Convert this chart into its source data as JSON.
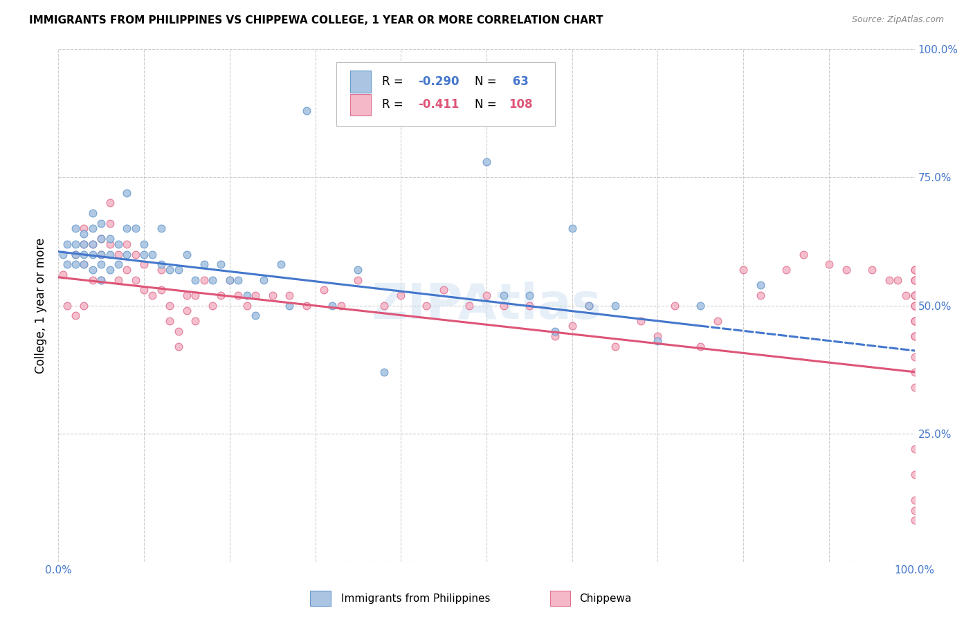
{
  "title": "IMMIGRANTS FROM PHILIPPINES VS CHIPPEWA COLLEGE, 1 YEAR OR MORE CORRELATION CHART",
  "source": "Source: ZipAtlas.com",
  "ylabel": "College, 1 year or more",
  "xlim": [
    0.0,
    1.0
  ],
  "ylim": [
    0.0,
    1.0
  ],
  "xtick_positions": [
    0.0,
    0.1,
    0.2,
    0.3,
    0.4,
    0.5,
    0.6,
    0.7,
    0.8,
    0.9,
    1.0
  ],
  "ytick_positions": [
    0.0,
    0.25,
    0.5,
    0.75,
    1.0
  ],
  "series1_color": "#aac4e2",
  "series1_edge": "#6699cc",
  "series2_color": "#f4b8c8",
  "series2_edge": "#e07090",
  "line1_color": "#4477cc",
  "line2_color": "#dd5577",
  "watermark": "ZIPAtlas",
  "legend_r1": "-0.290",
  "legend_n1": "63",
  "legend_r2": "-0.411",
  "legend_n2": "108",
  "series1_x": [
    0.005,
    0.01,
    0.01,
    0.02,
    0.02,
    0.02,
    0.02,
    0.03,
    0.03,
    0.03,
    0.03,
    0.04,
    0.04,
    0.04,
    0.04,
    0.04,
    0.05,
    0.05,
    0.05,
    0.05,
    0.05,
    0.06,
    0.06,
    0.06,
    0.07,
    0.07,
    0.08,
    0.08,
    0.08,
    0.09,
    0.1,
    0.1,
    0.11,
    0.12,
    0.12,
    0.13,
    0.14,
    0.15,
    0.16,
    0.17,
    0.18,
    0.19,
    0.2,
    0.21,
    0.22,
    0.23,
    0.24,
    0.26,
    0.27,
    0.29,
    0.32,
    0.35,
    0.38,
    0.5,
    0.52,
    0.55,
    0.58,
    0.6,
    0.62,
    0.65,
    0.7,
    0.75,
    0.82
  ],
  "series1_y": [
    0.6,
    0.62,
    0.58,
    0.65,
    0.62,
    0.6,
    0.58,
    0.64,
    0.62,
    0.6,
    0.58,
    0.68,
    0.65,
    0.62,
    0.6,
    0.57,
    0.66,
    0.63,
    0.6,
    0.58,
    0.55,
    0.63,
    0.6,
    0.57,
    0.62,
    0.58,
    0.72,
    0.65,
    0.6,
    0.65,
    0.62,
    0.6,
    0.6,
    0.65,
    0.58,
    0.57,
    0.57,
    0.6,
    0.55,
    0.58,
    0.55,
    0.58,
    0.55,
    0.55,
    0.52,
    0.48,
    0.55,
    0.58,
    0.5,
    0.88,
    0.5,
    0.57,
    0.37,
    0.78,
    0.52,
    0.52,
    0.45,
    0.65,
    0.5,
    0.5,
    0.43,
    0.5,
    0.54
  ],
  "series2_x": [
    0.005,
    0.01,
    0.02,
    0.02,
    0.03,
    0.03,
    0.03,
    0.03,
    0.04,
    0.04,
    0.05,
    0.05,
    0.05,
    0.06,
    0.06,
    0.06,
    0.07,
    0.07,
    0.08,
    0.08,
    0.09,
    0.09,
    0.1,
    0.1,
    0.11,
    0.12,
    0.12,
    0.13,
    0.13,
    0.14,
    0.14,
    0.15,
    0.15,
    0.16,
    0.16,
    0.17,
    0.18,
    0.19,
    0.2,
    0.21,
    0.22,
    0.23,
    0.25,
    0.27,
    0.29,
    0.31,
    0.33,
    0.35,
    0.38,
    0.4,
    0.43,
    0.45,
    0.48,
    0.5,
    0.52,
    0.55,
    0.58,
    0.6,
    0.62,
    0.65,
    0.68,
    0.7,
    0.72,
    0.75,
    0.77,
    0.8,
    0.82,
    0.85,
    0.87,
    0.9,
    0.92,
    0.95,
    0.97,
    0.98,
    0.99,
    1.0,
    1.0,
    1.0,
    1.0,
    1.0,
    1.0,
    1.0,
    1.0,
    1.0,
    1.0,
    1.0,
    1.0,
    1.0,
    1.0,
    1.0,
    1.0,
    1.0,
    1.0,
    1.0,
    1.0,
    1.0,
    1.0,
    1.0,
    1.0,
    1.0,
    1.0,
    1.0,
    1.0,
    1.0,
    1.0,
    1.0,
    1.0,
    1.0
  ],
  "series2_y": [
    0.56,
    0.5,
    0.6,
    0.48,
    0.65,
    0.62,
    0.58,
    0.5,
    0.62,
    0.55,
    0.63,
    0.6,
    0.55,
    0.7,
    0.66,
    0.62,
    0.6,
    0.55,
    0.62,
    0.57,
    0.6,
    0.55,
    0.58,
    0.53,
    0.52,
    0.57,
    0.53,
    0.5,
    0.47,
    0.45,
    0.42,
    0.52,
    0.49,
    0.52,
    0.47,
    0.55,
    0.5,
    0.52,
    0.55,
    0.52,
    0.5,
    0.52,
    0.52,
    0.52,
    0.5,
    0.53,
    0.5,
    0.55,
    0.5,
    0.52,
    0.5,
    0.53,
    0.5,
    0.52,
    0.5,
    0.5,
    0.44,
    0.46,
    0.5,
    0.42,
    0.47,
    0.44,
    0.5,
    0.42,
    0.47,
    0.57,
    0.52,
    0.57,
    0.6,
    0.58,
    0.57,
    0.57,
    0.55,
    0.55,
    0.52,
    0.55,
    0.52,
    0.55,
    0.52,
    0.22,
    0.5,
    0.57,
    0.37,
    0.44,
    0.52,
    0.5,
    0.47,
    0.55,
    0.57,
    0.5,
    0.44,
    0.4,
    0.34,
    0.52,
    0.12,
    0.17,
    0.57,
    0.52,
    0.47,
    0.5,
    0.55,
    0.47,
    0.5,
    0.47,
    0.44,
    0.1,
    0.08,
    0.44
  ]
}
